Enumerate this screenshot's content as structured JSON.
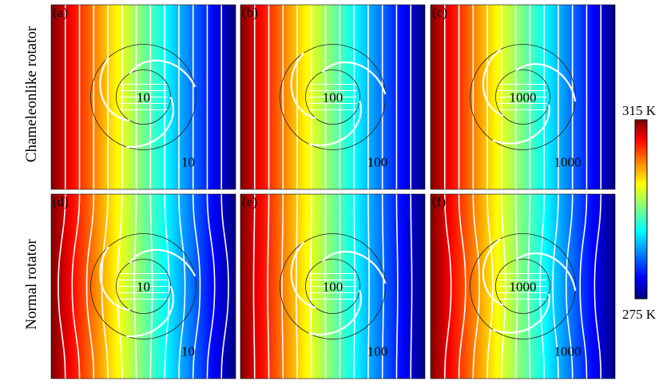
{
  "figure": {
    "row_labels": [
      "Chameleonlike rotator",
      "Normal rotator"
    ],
    "colorbar": {
      "max_label": "315 K",
      "min_label": "275 K",
      "colormap": "jet"
    },
    "panels": [
      {
        "id": "a",
        "letter": "(a)",
        "inner_value": "10",
        "outer_value": "10",
        "row": 0,
        "distortion": 0.0
      },
      {
        "id": "b",
        "letter": "(b)",
        "inner_value": "100",
        "outer_value": "100",
        "row": 0,
        "distortion": 0.0
      },
      {
        "id": "c",
        "letter": "(c)",
        "inner_value": "1000",
        "outer_value": "1000",
        "row": 0,
        "distortion": 0.0
      },
      {
        "id": "d",
        "letter": "(d)",
        "inner_value": "10",
        "outer_value": "10",
        "row": 1,
        "distortion": 1.0
      },
      {
        "id": "e",
        "letter": "(e)",
        "inner_value": "100",
        "outer_value": "100",
        "row": 1,
        "distortion": 0.15
      },
      {
        "id": "f",
        "letter": "(f)",
        "inner_value": "1000",
        "outer_value": "1000",
        "row": 1,
        "distortion": -0.9
      }
    ]
  }
}
